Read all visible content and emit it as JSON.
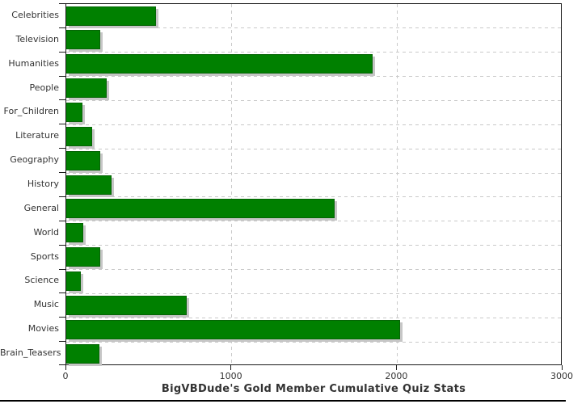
{
  "title": "BigVBDude's Gold Member Cumulative Quiz Stats",
  "chart_data": {
    "type": "bar",
    "orientation": "horizontal",
    "title": "BigVBDude's Gold Member Cumulative Quiz Stats",
    "categories": [
      "Celebrities",
      "Television",
      "Humanities",
      "People",
      "For_Children",
      "Literature",
      "Geography",
      "History",
      "General",
      "World",
      "Sports",
      "Science",
      "Music",
      "Movies",
      "Brain_Teasers"
    ],
    "values": [
      540,
      205,
      1850,
      245,
      100,
      155,
      205,
      275,
      1620,
      105,
      205,
      90,
      730,
      2020,
      200
    ],
    "xlim": [
      0,
      3000
    ],
    "x_ticks": [
      0,
      1000,
      2000,
      3000
    ],
    "x_tick_labels": [
      "0",
      "1000",
      "2000",
      "3000"
    ],
    "grid": "dashed",
    "legend": "none",
    "colors": {
      "bar": "#008000",
      "bar_border": "#056405",
      "bar_shadow": "#c6c6c6",
      "gridline": "#c9c9c9",
      "axis": "#1a1a1a",
      "text": "#333333",
      "background": "#ffffff"
    }
  }
}
